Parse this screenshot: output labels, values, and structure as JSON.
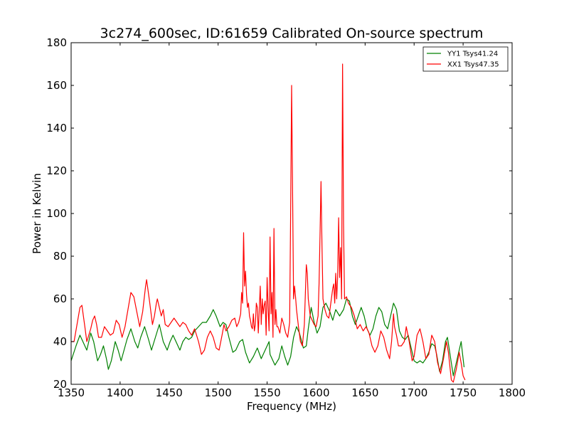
{
  "chart_data": {
    "type": "line",
    "title": "3c274_600sec, ID:61659 Calibrated On-source spectrum",
    "xlabel": "Frequency (MHz)",
    "ylabel": "Power in Kelvin",
    "xlim": [
      1350,
      1800
    ],
    "ylim": [
      20,
      180
    ],
    "xticks": [
      "1350",
      "1400",
      "1450",
      "1500",
      "1550",
      "1600",
      "1650",
      "1700",
      "1750",
      "1800"
    ],
    "yticks": [
      "20",
      "40",
      "60",
      "80",
      "100",
      "120",
      "140",
      "160",
      "180"
    ],
    "grid": false,
    "legend_position": "top-right",
    "series": [
      {
        "name": "YY1 Tsys41.24",
        "color": "#008000",
        "points": [
          [
            1350,
            31
          ],
          [
            1355,
            38
          ],
          [
            1359,
            43
          ],
          [
            1363,
            39
          ],
          [
            1366,
            36
          ],
          [
            1370,
            44
          ],
          [
            1373,
            40
          ],
          [
            1377,
            31
          ],
          [
            1380,
            34
          ],
          [
            1383,
            38
          ],
          [
            1386,
            32
          ],
          [
            1388,
            27
          ],
          [
            1391,
            31
          ],
          [
            1395,
            40
          ],
          [
            1398,
            36
          ],
          [
            1401,
            31
          ],
          [
            1404,
            36
          ],
          [
            1407,
            41
          ],
          [
            1411,
            46
          ],
          [
            1415,
            40
          ],
          [
            1418,
            37
          ],
          [
            1421,
            42
          ],
          [
            1425,
            47
          ],
          [
            1429,
            41
          ],
          [
            1432,
            36
          ],
          [
            1436,
            42
          ],
          [
            1440,
            48
          ],
          [
            1444,
            40
          ],
          [
            1448,
            36
          ],
          [
            1451,
            40
          ],
          [
            1454,
            43
          ],
          [
            1458,
            39
          ],
          [
            1461,
            36
          ],
          [
            1464,
            40
          ],
          [
            1467,
            42
          ],
          [
            1470,
            41
          ],
          [
            1473,
            42
          ],
          [
            1476,
            45
          ],
          [
            1480,
            47
          ],
          [
            1484,
            49
          ],
          [
            1488,
            49
          ],
          [
            1492,
            52
          ],
          [
            1495,
            55
          ],
          [
            1498,
            52
          ],
          [
            1502,
            47
          ],
          [
            1505,
            49
          ],
          [
            1508,
            48
          ],
          [
            1511,
            42
          ],
          [
            1515,
            35
          ],
          [
            1518,
            36
          ],
          [
            1522,
            40
          ],
          [
            1525,
            41
          ],
          [
            1528,
            35
          ],
          [
            1532,
            30
          ],
          [
            1536,
            33
          ],
          [
            1540,
            37
          ],
          [
            1544,
            32
          ],
          [
            1548,
            36
          ],
          [
            1552,
            40
          ],
          [
            1553,
            34
          ],
          [
            1555,
            32
          ],
          [
            1558,
            29
          ],
          [
            1562,
            32
          ],
          [
            1565,
            38
          ],
          [
            1568,
            33
          ],
          [
            1571,
            29
          ],
          [
            1574,
            33
          ],
          [
            1577,
            42
          ],
          [
            1580,
            47
          ],
          [
            1583,
            44
          ],
          [
            1587,
            37
          ],
          [
            1590,
            38
          ],
          [
            1592,
            46
          ],
          [
            1595,
            56
          ],
          [
            1598,
            49
          ],
          [
            1601,
            44
          ],
          [
            1604,
            47
          ],
          [
            1607,
            56
          ],
          [
            1610,
            58
          ],
          [
            1614,
            54
          ],
          [
            1617,
            50
          ],
          [
            1620,
            55
          ],
          [
            1624,
            52
          ],
          [
            1628,
            55
          ],
          [
            1631,
            60
          ],
          [
            1634,
            59
          ],
          [
            1637,
            52
          ],
          [
            1640,
            48
          ],
          [
            1643,
            52
          ],
          [
            1646,
            56
          ],
          [
            1649,
            52
          ],
          [
            1652,
            46
          ],
          [
            1655,
            43
          ],
          [
            1658,
            46
          ],
          [
            1661,
            52
          ],
          [
            1664,
            56
          ],
          [
            1667,
            54
          ],
          [
            1670,
            48
          ],
          [
            1673,
            46
          ],
          [
            1676,
            52
          ],
          [
            1679,
            58
          ],
          [
            1682,
            55
          ],
          [
            1685,
            45
          ],
          [
            1688,
            42
          ],
          [
            1691,
            41
          ],
          [
            1694,
            43
          ],
          [
            1697,
            37
          ],
          [
            1700,
            31
          ],
          [
            1703,
            30
          ],
          [
            1706,
            31
          ],
          [
            1709,
            30
          ],
          [
            1712,
            32
          ],
          [
            1715,
            35
          ],
          [
            1718,
            39
          ],
          [
            1721,
            38
          ],
          [
            1723,
            34
          ],
          [
            1726,
            26
          ],
          [
            1729,
            31
          ],
          [
            1732,
            40
          ],
          [
            1734,
            42
          ],
          [
            1737,
            33
          ],
          [
            1740,
            24
          ],
          [
            1743,
            30
          ],
          [
            1746,
            36
          ],
          [
            1748,
            40
          ],
          [
            1751,
            28
          ]
        ]
      },
      {
        "name": "XX1 Tsys47.35",
        "color": "#ff0000",
        "points": [
          [
            1350,
            40
          ],
          [
            1353,
            40
          ],
          [
            1356,
            48
          ],
          [
            1359,
            56
          ],
          [
            1361,
            57
          ],
          [
            1364,
            47
          ],
          [
            1366,
            40
          ],
          [
            1368,
            43
          ],
          [
            1370,
            46
          ],
          [
            1372,
            50
          ],
          [
            1374,
            52
          ],
          [
            1376,
            48
          ],
          [
            1378,
            42
          ],
          [
            1381,
            42
          ],
          [
            1384,
            47
          ],
          [
            1387,
            45
          ],
          [
            1390,
            43
          ],
          [
            1393,
            44
          ],
          [
            1396,
            50
          ],
          [
            1399,
            48
          ],
          [
            1402,
            42
          ],
          [
            1405,
            47
          ],
          [
            1408,
            55
          ],
          [
            1411,
            63
          ],
          [
            1414,
            61
          ],
          [
            1417,
            54
          ],
          [
            1420,
            47
          ],
          [
            1423,
            54
          ],
          [
            1426,
            66
          ],
          [
            1427,
            69
          ],
          [
            1430,
            59
          ],
          [
            1433,
            48
          ],
          [
            1435,
            52
          ],
          [
            1437,
            58
          ],
          [
            1438,
            60
          ],
          [
            1440,
            56
          ],
          [
            1442,
            52
          ],
          [
            1444,
            55
          ],
          [
            1446,
            48
          ],
          [
            1449,
            47
          ],
          [
            1452,
            49
          ],
          [
            1455,
            51
          ],
          [
            1458,
            49
          ],
          [
            1461,
            47
          ],
          [
            1464,
            49
          ],
          [
            1467,
            48
          ],
          [
            1470,
            45
          ],
          [
            1473,
            43
          ],
          [
            1476,
            46
          ],
          [
            1480,
            40
          ],
          [
            1483,
            34
          ],
          [
            1486,
            36
          ],
          [
            1489,
            42
          ],
          [
            1492,
            45
          ],
          [
            1495,
            42
          ],
          [
            1498,
            37
          ],
          [
            1501,
            36
          ],
          [
            1504,
            43
          ],
          [
            1506,
            48
          ],
          [
            1508,
            45
          ],
          [
            1511,
            47
          ],
          [
            1514,
            50
          ],
          [
            1517,
            51
          ],
          [
            1519,
            47
          ],
          [
            1521,
            49
          ],
          [
            1523,
            53
          ],
          [
            1524,
            63
          ],
          [
            1525,
            58
          ],
          [
            1526,
            91
          ],
          [
            1527,
            66
          ],
          [
            1528,
            73
          ],
          [
            1529,
            62
          ],
          [
            1530,
            56
          ],
          [
            1531,
            58
          ],
          [
            1532,
            52
          ],
          [
            1533,
            50
          ],
          [
            1534,
            47
          ],
          [
            1535,
            46
          ],
          [
            1536,
            53
          ],
          [
            1537,
            45
          ],
          [
            1538,
            48
          ],
          [
            1539,
            58
          ],
          [
            1540,
            56
          ],
          [
            1541,
            44
          ],
          [
            1542,
            55
          ],
          [
            1543,
            66
          ],
          [
            1544,
            48
          ],
          [
            1545,
            60
          ],
          [
            1546,
            53
          ],
          [
            1547,
            57
          ],
          [
            1548,
            59
          ],
          [
            1549,
            43
          ],
          [
            1550,
            70
          ],
          [
            1551,
            56
          ],
          [
            1552,
            45
          ],
          [
            1553,
            89
          ],
          [
            1554,
            53
          ],
          [
            1555,
            63
          ],
          [
            1556,
            42
          ],
          [
            1557,
            93
          ],
          [
            1558,
            48
          ],
          [
            1559,
            55
          ],
          [
            1560,
            47
          ],
          [
            1561,
            47
          ],
          [
            1563,
            44
          ],
          [
            1565,
            51
          ],
          [
            1567,
            48
          ],
          [
            1569,
            44
          ],
          [
            1571,
            42
          ],
          [
            1573,
            49
          ],
          [
            1574,
            100
          ],
          [
            1575,
            160
          ],
          [
            1576,
            110
          ],
          [
            1577,
            60
          ],
          [
            1578,
            66
          ],
          [
            1579,
            61
          ],
          [
            1580,
            55
          ],
          [
            1582,
            47
          ],
          [
            1584,
            40
          ],
          [
            1586,
            38
          ],
          [
            1588,
            48
          ],
          [
            1589,
            62
          ],
          [
            1590,
            76
          ],
          [
            1591,
            72
          ],
          [
            1592,
            60
          ],
          [
            1594,
            52
          ],
          [
            1596,
            50
          ],
          [
            1598,
            48
          ],
          [
            1600,
            47
          ],
          [
            1602,
            52
          ],
          [
            1603,
            67
          ],
          [
            1604,
            90
          ],
          [
            1605,
            115
          ],
          [
            1606,
            85
          ],
          [
            1607,
            60
          ],
          [
            1609,
            55
          ],
          [
            1611,
            52
          ],
          [
            1613,
            51
          ],
          [
            1615,
            58
          ],
          [
            1617,
            65
          ],
          [
            1618,
            67
          ],
          [
            1619,
            58
          ],
          [
            1620,
            72
          ],
          [
            1621,
            60
          ],
          [
            1622,
            71
          ],
          [
            1623,
            98
          ],
          [
            1624,
            70
          ],
          [
            1625,
            84
          ],
          [
            1626,
            60
          ],
          [
            1627,
            170
          ],
          [
            1628,
            95
          ],
          [
            1629,
            60
          ],
          [
            1631,
            61
          ],
          [
            1633,
            58
          ],
          [
            1636,
            56
          ],
          [
            1639,
            52
          ],
          [
            1642,
            46
          ],
          [
            1645,
            48
          ],
          [
            1648,
            45
          ],
          [
            1651,
            47
          ],
          [
            1654,
            44
          ],
          [
            1657,
            38
          ],
          [
            1660,
            35
          ],
          [
            1663,
            38
          ],
          [
            1666,
            45
          ],
          [
            1669,
            42
          ],
          [
            1672,
            36
          ],
          [
            1675,
            32
          ],
          [
            1677,
            40
          ],
          [
            1679,
            53
          ],
          [
            1680,
            47
          ],
          [
            1682,
            43
          ],
          [
            1684,
            38
          ],
          [
            1687,
            38
          ],
          [
            1690,
            40
          ],
          [
            1692,
            47
          ],
          [
            1695,
            40
          ],
          [
            1698,
            31
          ],
          [
            1700,
            33
          ],
          [
            1703,
            43
          ],
          [
            1706,
            46
          ],
          [
            1709,
            40
          ],
          [
            1712,
            32
          ],
          [
            1715,
            34
          ],
          [
            1718,
            43
          ],
          [
            1721,
            40
          ],
          [
            1724,
            30
          ],
          [
            1727,
            25
          ],
          [
            1730,
            32
          ],
          [
            1733,
            40
          ],
          [
            1735,
            35
          ],
          [
            1738,
            22
          ],
          [
            1740,
            21
          ],
          [
            1743,
            27
          ],
          [
            1746,
            35
          ],
          [
            1748,
            30
          ],
          [
            1750,
            24
          ],
          [
            1752,
            22
          ]
        ]
      }
    ]
  }
}
